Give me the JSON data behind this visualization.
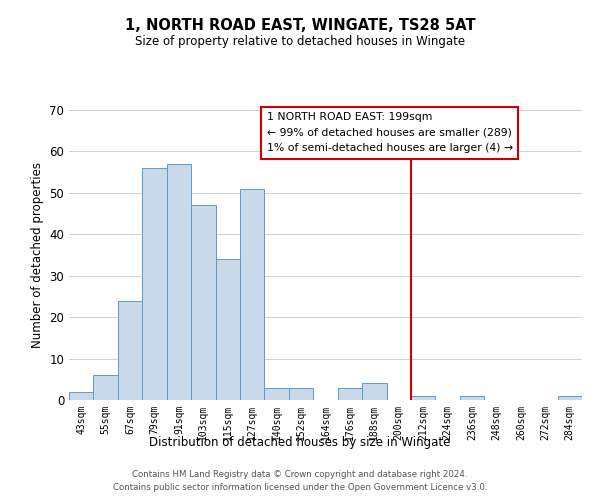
{
  "title": "1, NORTH ROAD EAST, WINGATE, TS28 5AT",
  "subtitle": "Size of property relative to detached houses in Wingate",
  "xlabel": "Distribution of detached houses by size in Wingate",
  "ylabel": "Number of detached properties",
  "bar_labels": [
    "43sqm",
    "55sqm",
    "67sqm",
    "79sqm",
    "91sqm",
    "103sqm",
    "115sqm",
    "127sqm",
    "140sqm",
    "152sqm",
    "164sqm",
    "176sqm",
    "188sqm",
    "200sqm",
    "212sqm",
    "224sqm",
    "236sqm",
    "248sqm",
    "260sqm",
    "272sqm",
    "284sqm"
  ],
  "bar_values": [
    2,
    6,
    24,
    56,
    57,
    47,
    34,
    51,
    3,
    3,
    0,
    3,
    4,
    0,
    1,
    0,
    1,
    0,
    0,
    0,
    1
  ],
  "bar_color": "#c9d9ea",
  "bar_edge_color": "#5a9ec9",
  "ylim": [
    0,
    70
  ],
  "yticks": [
    0,
    10,
    20,
    30,
    40,
    50,
    60,
    70
  ],
  "vline_x": 13.5,
  "vline_color": "#cc0000",
  "annotation_title": "1 NORTH ROAD EAST: 199sqm",
  "annotation_line1": "← 99% of detached houses are smaller (289)",
  "annotation_line2": "1% of semi-detached houses are larger (4) →",
  "footer1": "Contains HM Land Registry data © Crown copyright and database right 2024.",
  "footer2": "Contains public sector information licensed under the Open Government Licence v3.0.",
  "background_color": "#ffffff",
  "grid_color": "#d0d0d0"
}
